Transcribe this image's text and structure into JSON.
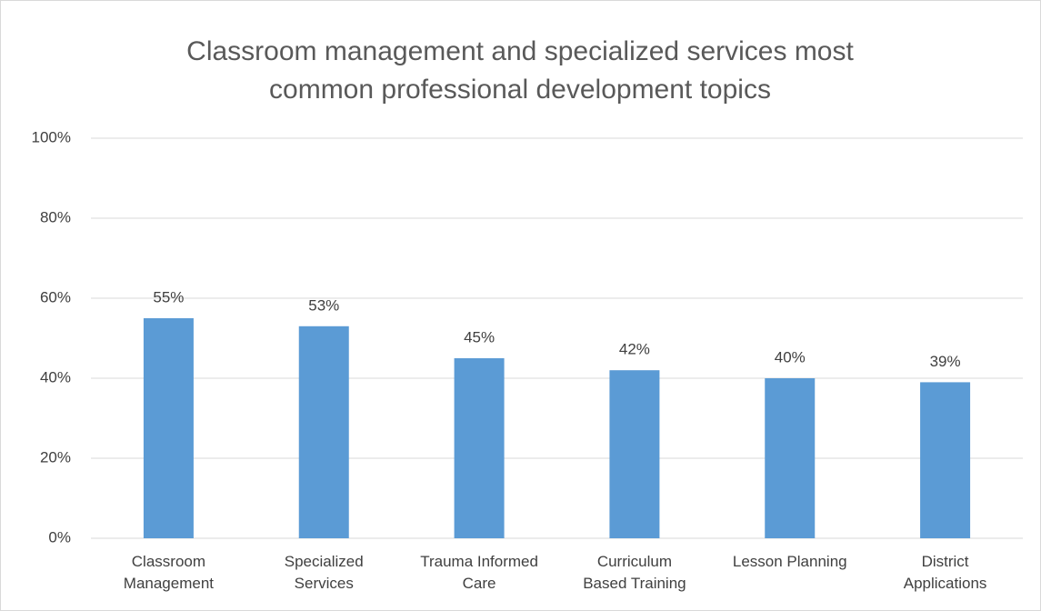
{
  "chart_data": {
    "type": "bar",
    "title": "Classroom management and specialized services most common professional development topics",
    "categories": [
      "Classroom Management",
      "Specialized Services",
      "Trauma Informed Care",
      "Curriculum Based Training",
      "Lesson Planning",
      "District Applications"
    ],
    "values": [
      55,
      53,
      45,
      42,
      40,
      39
    ],
    "value_labels": [
      "55%",
      "53%",
      "45%",
      "42%",
      "40%",
      "39%"
    ],
    "color": "#5b9bd5",
    "ylim": [
      0,
      100
    ],
    "yticks": [
      {
        "value": 0,
        "label": "0%"
      },
      {
        "value": 20,
        "label": "20%"
      },
      {
        "value": 40,
        "label": "40%"
      },
      {
        "value": 60,
        "label": "60%"
      },
      {
        "value": 80,
        "label": "80%"
      },
      {
        "value": 100,
        "label": "100%"
      }
    ],
    "grid": true
  }
}
